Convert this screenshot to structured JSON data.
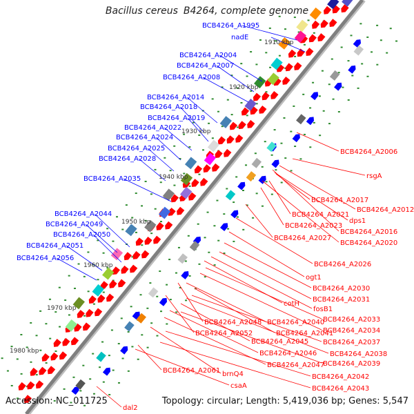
{
  "title": {
    "organism": "Bacillus cereus",
    "strain": "B4264, complete genome"
  },
  "footer": {
    "accession": "Accession: NC_011725",
    "topology": "Topology: circular; Length: 5,419,036 bp; Genes: 5,547"
  },
  "colors": {
    "forward_label": "#0000ff",
    "reverse_label": "#ff0000",
    "forward_gene": "#0000ff",
    "reverse_gene": "#ff0000",
    "backbone": "#7f7f7f",
    "tick": "#2e8b2e"
  },
  "axis_ticks": [
    "1910 kbp",
    "1920 kbp",
    "1930 kbp",
    "1940 kbp",
    "1950 kbp",
    "1960 kbp",
    "1970 kbp",
    "1980 kbp"
  ],
  "forward_labels": [
    "BCB4264_A1995",
    "nadE",
    "BCB4264_A2004",
    "BCB4264_A2007",
    "BCB4264_A2008",
    "BCB4264_A2014",
    "BCB4264_A2018",
    "BCB4264_A2019",
    "BCB4264_A2022",
    "BCB4264_A2024",
    "BCB4264_A2025",
    "BCB4264_A2028",
    "BCB4264_A2035",
    "BCB4264_A2044",
    "BCB4264_A2049",
    "BCB4264_A2050",
    "BCB4264_A2051",
    "BCB4264_A2056"
  ],
  "reverse_labels": [
    "BCB4264_A2006",
    "rsgA",
    "BCB4264_A2017",
    "BCB4264_A2012",
    "BCB4264_A2021",
    "dps1",
    "BCB4264_A2023",
    "BCB4264_A2016",
    "BCB4264_A2027",
    "BCB4264_A2020",
    "BCB4264_A2026",
    "ogt1",
    "BCB4264_A2030",
    "BCB4264_A2031",
    "cotH",
    "fosB1",
    "BCB4264_A2033",
    "BCB4264_A2048",
    "BCB4264_A2040",
    "BCB4264_A2034",
    "BCB4264_A2041",
    "BCB4264_A2052",
    "BCB4264_A2037",
    "BCB4264_A2045",
    "BCB4264_A2038",
    "BCB4264_A2046",
    "BCB4264_A2039",
    "BCB4264_A2047",
    "BCB4264_A2061",
    "brnQ4",
    "BCB4264_A2042",
    "csaA",
    "BCB4264_A2043",
    "dal2"
  ]
}
